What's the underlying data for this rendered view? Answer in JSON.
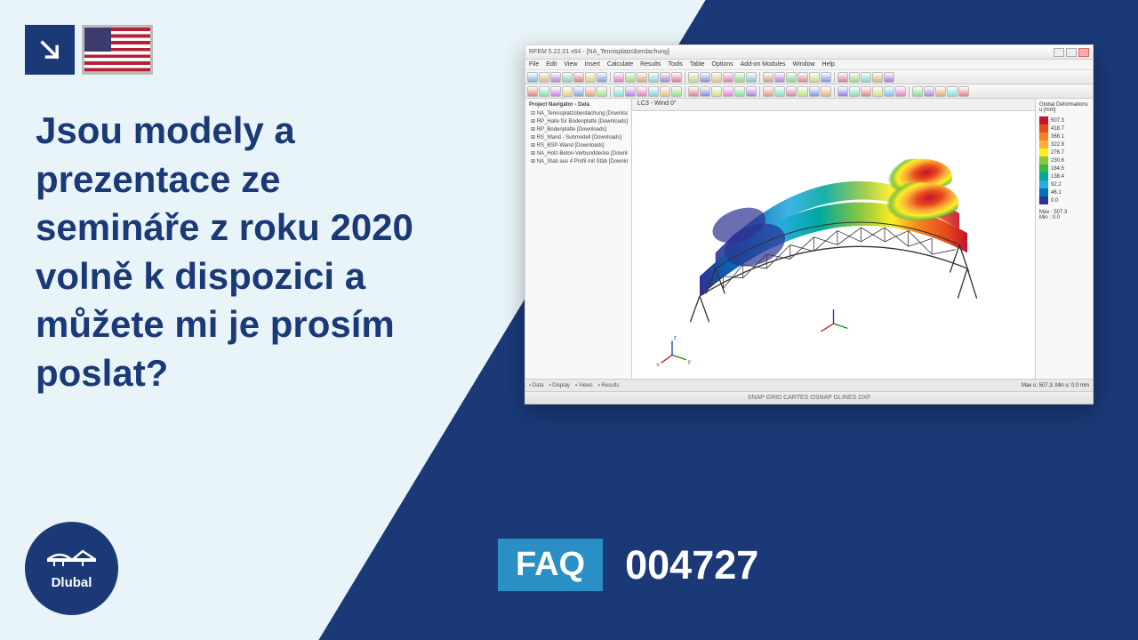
{
  "meta": {
    "brand": "Dlubal"
  },
  "heading": "Jsou modely a prezentace ze semináře z roku 2020 volně k dispozici a můžete mi je prosím poslat?",
  "faq": {
    "label": "FAQ",
    "number": "004727"
  },
  "screenshot": {
    "title": "RFEM 5.22.01 x64 - [NA_Tennisplatzüberdachung]",
    "menus": [
      "File",
      "Edit",
      "View",
      "Insert",
      "Calculate",
      "Results",
      "Tools",
      "Table",
      "Options",
      "Add-on Modules",
      "Window",
      "Help"
    ],
    "toolbar_colors": [
      "#7faed6",
      "#d6b87f",
      "#c07fd6",
      "#7fd6a5",
      "#d67f7f",
      "#d6d07f",
      "#7f9ed6",
      "#d67fc2",
      "#99d67f",
      "#d6a17f",
      "#7fd6cf",
      "#a17fd6",
      "#d67f8e",
      "#bfd67f",
      "#7f8ed6",
      "#d6c37f",
      "#d67fb0",
      "#8ad67f",
      "#7fc1d6",
      "#d69a7f",
      "#b47fd6",
      "#7fd68b",
      "#d6877f",
      "#cad67f",
      "#7f94d6",
      "#d67fa2",
      "#93d67f",
      "#7fd6c8",
      "#d6b27f",
      "#9d7fd6"
    ],
    "toolbar2_colors": [
      "#e07f7f",
      "#7fe0a5",
      "#d07fe0",
      "#e0d07f",
      "#7fa5e0",
      "#e0a17f",
      "#a5e07f",
      "#7fe0d6",
      "#b87fe0",
      "#e07fb8",
      "#7fd0e0",
      "#e0c07f",
      "#90e07f",
      "#e07f90",
      "#7f8ce0",
      "#d6e07f",
      "#e07fd6",
      "#7fe093",
      "#a87fe0",
      "#e0967f",
      "#7fe0c4",
      "#e07fa3",
      "#c0e07f",
      "#7f97e0",
      "#e0b47f",
      "#967fe0",
      "#7fe0b0",
      "#e0857f",
      "#cde07f",
      "#7fbee0",
      "#e07fc8",
      "#87e07f",
      "#b07fe0",
      "#e0a87f",
      "#7fe0dd",
      "#e07f88"
    ],
    "sidebar": {
      "title": "Project Navigator - Data",
      "items": [
        "⊟ NA_Tennisplatzüberdachung [Downloads]",
        "⊞ RP_Halle für Bodenplatte [Downloads]",
        "⊞ RP_Bodenplatte [Downloads]",
        "⊞ RS_Wand - Submodell [Downloads]",
        "⊞ RS_BSP-Wand [Downloads]",
        "⊞ NA_Holz-Beton-Verbunddecke [Downloads]",
        "⊞ NA_Stab aus 4 Profil mit Stäb [Downloads]"
      ]
    },
    "main_header": "LC3 - Wind 0°",
    "tabs": [
      "Data",
      "Display",
      "Views",
      "Results"
    ],
    "statusbar": "Max u: 507.3, Min u: 0.0 mm",
    "statusbar_right": "SNAP  GRID  CARTES  OSNAP  GLINES  DXF",
    "legend": {
      "title": "Global Deformations u [mm]",
      "stops": [
        {
          "color": "#c4122f",
          "value": "507.3"
        },
        {
          "color": "#e84a1c",
          "value": "418.7"
        },
        {
          "color": "#f58220",
          "value": "368.1"
        },
        {
          "color": "#fbb03b",
          "value": "322.8"
        },
        {
          "color": "#fcee21",
          "value": "276.7"
        },
        {
          "color": "#8cc63f",
          "value": "230.6"
        },
        {
          "color": "#39b54a",
          "value": "184.5"
        },
        {
          "color": "#00a99d",
          "value": "138.4"
        },
        {
          "color": "#29abe2",
          "value": "92.2"
        },
        {
          "color": "#0071bc",
          "value": "46.1"
        },
        {
          "color": "#2e3192",
          "value": "0.0"
        }
      ],
      "max": "Max : 507.3",
      "min": "Min :   0.0"
    }
  },
  "colors": {
    "primary": "#1a3976",
    "lightbg": "#e8f4f8",
    "faqblue": "#2a8fc4"
  }
}
